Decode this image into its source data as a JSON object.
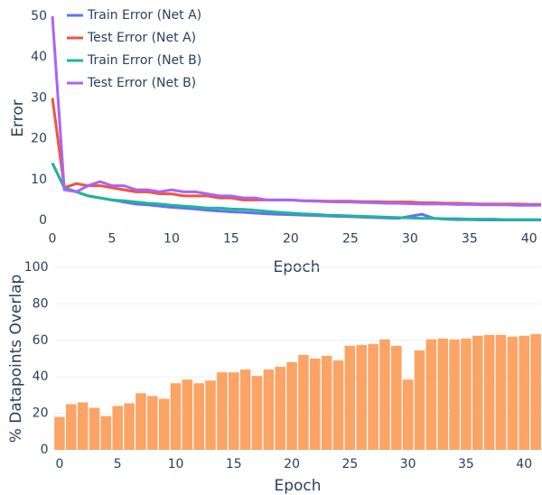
{
  "chart_data": [
    {
      "type": "line",
      "x_label": "Epoch",
      "y_label": "Error",
      "x": [
        0,
        1,
        2,
        3,
        4,
        5,
        6,
        7,
        8,
        9,
        10,
        11,
        12,
        13,
        14,
        15,
        16,
        17,
        18,
        19,
        20,
        21,
        22,
        23,
        24,
        25,
        26,
        27,
        28,
        29,
        30,
        31,
        32,
        33,
        34,
        35,
        36,
        37,
        38,
        39,
        40,
        41
      ],
      "xlim": [
        0,
        41
      ],
      "xticks": [
        0,
        5,
        10,
        15,
        20,
        25,
        30,
        35,
        40
      ],
      "ylim": [
        -1,
        51
      ],
      "yticks": [
        0,
        10,
        20,
        30,
        40,
        50
      ],
      "grid": false,
      "legend": "top-left",
      "series": [
        {
          "name": "Train Error (Net A)",
          "color": "#636efa",
          "values": [
            14,
            8,
            7,
            6,
            5.5,
            5,
            4.5,
            4,
            3.8,
            3.5,
            3.2,
            3,
            2.8,
            2.5,
            2.3,
            2.1,
            2,
            1.8,
            1.6,
            1.5,
            1.4,
            1.3,
            1.2,
            1.1,
            1,
            0.9,
            0.8,
            0.7,
            0.6,
            0.5,
            1,
            1.5,
            0.5,
            0.3,
            0.2,
            0.2,
            0.1,
            0.1,
            0.1,
            0.1,
            0.1,
            0.1
          ]
        },
        {
          "name": "Test Error (Net A)",
          "color": "#ef553b",
          "values": [
            30,
            8,
            9,
            8.5,
            8.5,
            8,
            7.5,
            7,
            7,
            6.5,
            6.5,
            6,
            6,
            6,
            5.5,
            5.5,
            5,
            5,
            5,
            5,
            5,
            4.8,
            4.8,
            4.7,
            4.7,
            4.7,
            4.6,
            4.6,
            4.5,
            4.5,
            4.5,
            4.3,
            4.3,
            4.2,
            4.2,
            4.1,
            4,
            4,
            4,
            4,
            3.9,
            3.9
          ]
        },
        {
          "name": "Train Error (Net B)",
          "color": "#1fb59c",
          "values": [
            14,
            8,
            7,
            6,
            5.5,
            5,
            4.8,
            4.5,
            4.2,
            4,
            3.7,
            3.5,
            3.3,
            3,
            3,
            2.8,
            2.7,
            2.5,
            2.2,
            2,
            1.8,
            1.6,
            1.5,
            1.3,
            1.2,
            1.1,
            1,
            0.9,
            0.8,
            0.7,
            0.6,
            0.5,
            0.5,
            0.4,
            0.4,
            0.3,
            0.3,
            0.3,
            0.2,
            0.2,
            0.2,
            0.2
          ]
        },
        {
          "name": "Test Error (Net B)",
          "color": "#ab63fa",
          "values": [
            50,
            7.5,
            7,
            8.5,
            9.5,
            8.5,
            8.5,
            7.5,
            7.5,
            7,
            7.5,
            7,
            7,
            6.5,
            6,
            6,
            5.5,
            5.5,
            5,
            5,
            5,
            4.8,
            4.7,
            4.6,
            4.5,
            4.5,
            4.4,
            4.3,
            4.2,
            4.2,
            4.1,
            4,
            4,
            4,
            3.9,
            3.9,
            3.8,
            3.8,
            3.8,
            3.7,
            3.7,
            3.7
          ]
        }
      ]
    },
    {
      "type": "bar",
      "x_label": "Epoch",
      "y_label": "% Datapoints Overlap",
      "color": "#fba466",
      "x": [
        0,
        1,
        2,
        3,
        4,
        5,
        6,
        7,
        8,
        9,
        10,
        11,
        12,
        13,
        14,
        15,
        16,
        17,
        18,
        19,
        20,
        21,
        22,
        23,
        24,
        25,
        26,
        27,
        28,
        29,
        30,
        31,
        32,
        33,
        34,
        35,
        36,
        37,
        38,
        39,
        40,
        41
      ],
      "xlim": [
        -0.5,
        41.5
      ],
      "xticks": [
        0,
        5,
        10,
        15,
        20,
        25,
        30,
        35,
        40
      ],
      "ylim": [
        0,
        100
      ],
      "yticks": [
        0,
        20,
        40,
        60,
        80,
        100
      ],
      "grid": true,
      "values": [
        18,
        25,
        26,
        23,
        18.5,
        24,
        25.5,
        31,
        29.5,
        28,
        36.5,
        38.5,
        36.5,
        38,
        42.5,
        42.5,
        44,
        40.5,
        44,
        45.5,
        48,
        52,
        50,
        51.5,
        49,
        57,
        57.5,
        58,
        60.5,
        57,
        38.5,
        54.5,
        60.5,
        61,
        60.5,
        61,
        62.5,
        63,
        63,
        62,
        62.5,
        63.5
      ]
    }
  ]
}
